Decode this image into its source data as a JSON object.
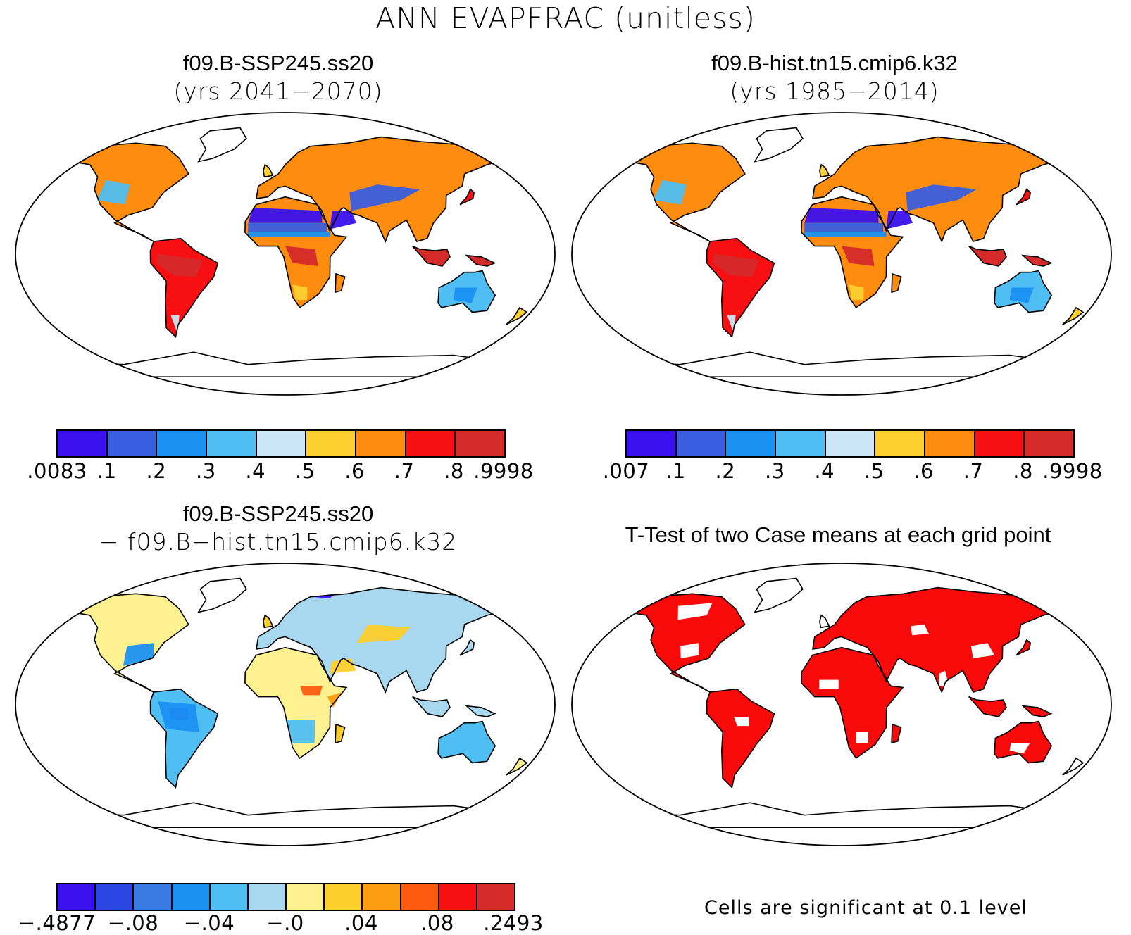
{
  "figure": {
    "title": "ANN EVAPFRAC (unitless)"
  },
  "panels": [
    {
      "id": "future",
      "title": "f09.B-SSP245.ss20",
      "subtitle": "(yrs 2041−2070)",
      "colorbar": {
        "colors": [
          "#3b10ef",
          "#3a5ee0",
          "#1a91f2",
          "#4fbef2",
          "#cbe6f6",
          "#fdd031",
          "#fd8c0f",
          "#f70f12",
          "#d42a2a"
        ],
        "tick_labels": [
          ".0083",
          ".1",
          ".2",
          ".3",
          ".4",
          ".5",
          ".6",
          ".7",
          ".8",
          ".9998"
        ]
      }
    },
    {
      "id": "historical",
      "title": "f09.B-hist.tn15.cmip6.k32",
      "subtitle": "(yrs 1985−2014)",
      "colorbar": {
        "colors": [
          "#3b10ef",
          "#3a5ee0",
          "#1a91f2",
          "#4fbef2",
          "#cbe6f6",
          "#fdd031",
          "#fd8c0f",
          "#f70f12",
          "#d42a2a"
        ],
        "tick_labels": [
          ".007",
          ".1",
          ".2",
          ".3",
          ".4",
          ".5",
          ".6",
          ".7",
          ".8",
          ".9998"
        ]
      }
    },
    {
      "id": "difference",
      "title": "f09.B-SSP245.ss20",
      "subtitle": "− f09.B−hist.tn15.cmip6.k32",
      "colorbar": {
        "colors": [
          "#3b10ef",
          "#2b46e2",
          "#3a78e4",
          "#1a91f2",
          "#4fbef2",
          "#a8d8f0",
          "#fdf28f",
          "#fdcf2a",
          "#fd9d12",
          "#fd5c10",
          "#f70f12",
          "#d42a2a"
        ],
        "tick_labels": [
          "−.4877",
          "−.08",
          "−.04",
          "−.0",
          ".04",
          ".08",
          ".2493"
        ]
      }
    },
    {
      "id": "ttest",
      "title": "T-Test of two Case means at each grid point",
      "note": "Cells are significant at 0.1 level",
      "significant_color": "#f80a0a"
    }
  ]
}
